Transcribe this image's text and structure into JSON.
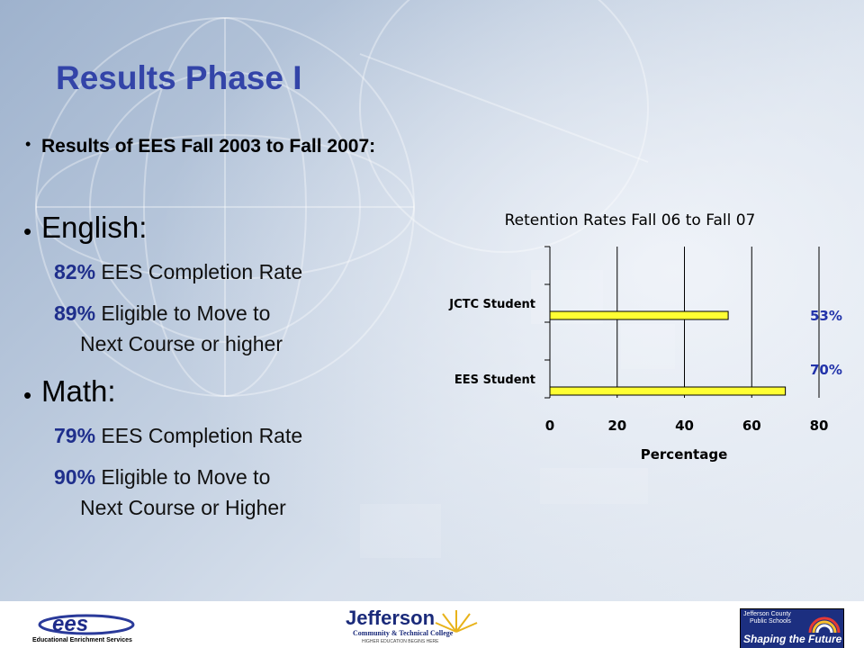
{
  "slide": {
    "title": "Results Phase I",
    "intro": "Results of EES Fall 2003 to Fall 2007:",
    "english": {
      "heading": "English:",
      "items": [
        {
          "pct": "82%",
          "text": " EES Completion Rate"
        },
        {
          "pct": "89%",
          "text": " Eligible to Move to",
          "text2": "Next Course or higher"
        }
      ]
    },
    "math": {
      "heading": "Math:",
      "items": [
        {
          "pct": "79%",
          "text": " EES Completion Rate"
        },
        {
          "pct": "90%",
          "text": " Eligible to Move to",
          "text2": "Next Course or Higher"
        }
      ]
    }
  },
  "chart_data": {
    "type": "bar",
    "orientation": "horizontal",
    "title": "Retention Rates Fall 06 to Fall 07",
    "xlabel": "Percentage",
    "ylabel": "",
    "categories": [
      "JCTC Student",
      "EES Student"
    ],
    "values": [
      53,
      70
    ],
    "data_labels": [
      "53%",
      "70%"
    ],
    "xlim": [
      0,
      80
    ],
    "x_ticks": [
      "0",
      "20",
      "40",
      "60",
      "80"
    ],
    "grid": "vertical",
    "colors": {
      "bar": "#ffff33",
      "label": "#2233aa"
    }
  },
  "footer": {
    "ees_logo": "ees",
    "ees_caption": "Educational Enrichment Services",
    "jefferson_name": "Jefferson",
    "jefferson_sub": "Community & Technical College",
    "jefferson_tag": "HIGHER EDUCATION BEGINS HERE",
    "jcps_line1": "Jefferson County",
    "jcps_line2": "Public Schools",
    "jcps_slogan": "Shaping the Future"
  },
  "colors": {
    "title": "#3344a8",
    "accent": "#1f2f8c"
  }
}
